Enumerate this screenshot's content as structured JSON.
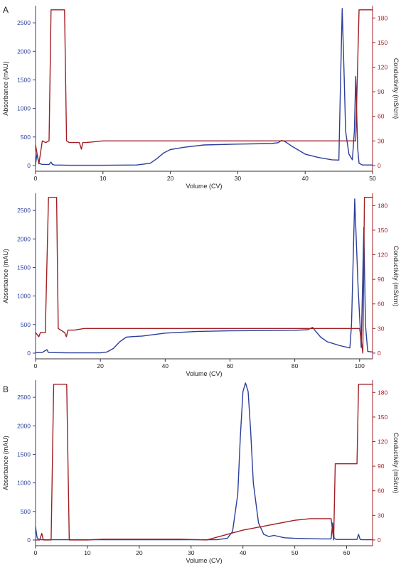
{
  "figure": {
    "colors": {
      "absorbance": "#2a3f9a",
      "conductivity": "#a01f24",
      "axis": "#333333",
      "left_axis": "#2a3f9a",
      "right_axis": "#a01f24"
    }
  },
  "chart_data": [
    {
      "type": "line",
      "panel_label": "A",
      "xlabel": "Volume (CV)",
      "ylabel": "Absorbance (mAU)",
      "y2label": "Conductivity (mS/cm)",
      "xlim": [
        0,
        50
      ],
      "ylim": [
        -100,
        2800
      ],
      "y2lim": [
        -7,
        195
      ],
      "xticks": [
        0,
        10,
        20,
        30,
        40,
        50
      ],
      "yticks": [
        0,
        500,
        1000,
        1500,
        2000,
        2500
      ],
      "y2ticks": [
        0,
        30,
        60,
        90,
        120,
        150,
        180
      ],
      "grid": false,
      "series": [
        {
          "axis": "left",
          "color": "#2a3f9a",
          "x": [
            0,
            0.2,
            0.5,
            1,
            2,
            2.3,
            2.5,
            2.8,
            5,
            10,
            15,
            17,
            18,
            19,
            20,
            22,
            25,
            30,
            35,
            36,
            36.5,
            37,
            38,
            40,
            42,
            44,
            45,
            45.2,
            45.5,
            45.8,
            46,
            46.5,
            47,
            47.3,
            47.5,
            47.8,
            48,
            48.5,
            50
          ],
          "y": [
            20,
            200,
            40,
            20,
            20,
            60,
            20,
            10,
            5,
            5,
            10,
            40,
            120,
            220,
            280,
            320,
            360,
            375,
            385,
            400,
            440,
            420,
            340,
            200,
            140,
            100,
            95,
            1200,
            2750,
            1500,
            600,
            200,
            100,
            600,
            1560,
            300,
            40,
            10,
            10
          ]
        },
        {
          "axis": "right",
          "color": "#a01f24",
          "x": [
            0,
            0.5,
            1,
            1.5,
            2,
            2.3,
            2.6,
            4,
            4.3,
            4.6,
            5,
            6.5,
            6.8,
            7,
            7.5,
            10,
            15,
            20,
            30,
            40,
            45,
            47,
            47.5,
            48,
            48.2,
            48.5,
            49.5,
            50
          ],
          "y": [
            25,
            2,
            30,
            28,
            30,
            190,
            190,
            190,
            190,
            30,
            28,
            28,
            20,
            28,
            28,
            30,
            30,
            30,
            30,
            30,
            30,
            30,
            30,
            190,
            190,
            190,
            190,
            190
          ]
        }
      ]
    },
    {
      "type": "line",
      "xlabel": "Volume (CV)",
      "ylabel": "Absorbance (mAU)",
      "y2label": "Conductivity (mS/cm)",
      "xlim": [
        0,
        104
      ],
      "ylim": [
        -100,
        2800
      ],
      "y2lim": [
        -7,
        195
      ],
      "xticks": [
        0,
        20,
        40,
        60,
        80,
        100
      ],
      "yticks": [
        0,
        500,
        1000,
        1500,
        2000,
        2500
      ],
      "y2ticks": [
        0,
        30,
        60,
        90,
        120,
        150,
        180
      ],
      "grid": false,
      "series": [
        {
          "axis": "left",
          "color": "#2a3f9a",
          "x": [
            0,
            2,
            3.5,
            4,
            10,
            20,
            22,
            24,
            26,
            28,
            30,
            33,
            40,
            50,
            60,
            70,
            80,
            84,
            85.5,
            86.5,
            88,
            90,
            94,
            97,
            97.5,
            98.5,
            99.5,
            100.5,
            101.3,
            101.8,
            102.5,
            104
          ],
          "y": [
            10,
            10,
            60,
            10,
            5,
            5,
            20,
            80,
            200,
            280,
            290,
            300,
            350,
            380,
            390,
            395,
            400,
            410,
            450,
            380,
            280,
            200,
            130,
            90,
            500,
            2700,
            1200,
            100,
            2200,
            500,
            30,
            20
          ]
        },
        {
          "axis": "right",
          "color": "#a01f24",
          "x": [
            0,
            1,
            1.5,
            3,
            4,
            6.5,
            7,
            9,
            9.5,
            10,
            12,
            15,
            20,
            40,
            60,
            80,
            95,
            100,
            101,
            101.5,
            102,
            103,
            104
          ],
          "y": [
            25,
            20,
            25,
            25,
            190,
            190,
            30,
            25,
            20,
            28,
            28,
            30,
            30,
            30,
            30,
            30,
            30,
            30,
            0,
            190,
            190,
            190,
            190
          ]
        }
      ]
    },
    {
      "type": "line",
      "panel_label": "B",
      "xlabel": "Volume (CV)",
      "ylabel": "Absorbance (mAU)",
      "y2label": "Conductivity (mS/cm)",
      "xlim": [
        0,
        65
      ],
      "ylim": [
        -100,
        2800
      ],
      "y2lim": [
        -7,
        195
      ],
      "xticks": [
        0,
        10,
        20,
        30,
        40,
        50,
        60
      ],
      "yticks": [
        0,
        500,
        1000,
        1500,
        2000,
        2500
      ],
      "y2ticks": [
        0,
        30,
        60,
        90,
        120,
        150,
        180
      ],
      "grid": false,
      "series": [
        {
          "axis": "left",
          "color": "#2a3f9a",
          "x": [
            0,
            0.3,
            0.6,
            1,
            5,
            10,
            15,
            20,
            25,
            30,
            35,
            37,
            38,
            39,
            39.5,
            40,
            40.5,
            41,
            41.5,
            42,
            43,
            44,
            45,
            46,
            48,
            50,
            55,
            57,
            57.3,
            57.6,
            58,
            62,
            62.3,
            62.6,
            63,
            65
          ],
          "y": [
            230,
            40,
            10,
            5,
            5,
            5,
            5,
            5,
            5,
            5,
            5,
            30,
            150,
            800,
            1800,
            2600,
            2750,
            2600,
            1900,
            1000,
            300,
            100,
            60,
            80,
            40,
            30,
            20,
            20,
            300,
            30,
            10,
            10,
            100,
            10,
            5,
            5
          ]
        },
        {
          "axis": "right",
          "color": "#a01f24",
          "x": [
            0,
            0.8,
            1.2,
            1.5,
            3,
            3.5,
            6,
            6.5,
            10,
            13,
            28,
            33,
            40,
            50,
            53,
            57,
            57.5,
            57.8,
            58,
            62,
            62.3,
            62.6,
            65
          ],
          "y": [
            0,
            0,
            8,
            0,
            0,
            190,
            190,
            0,
            0,
            1,
            1,
            0,
            12,
            24,
            26,
            26,
            0,
            93,
            93,
            93,
            190,
            190,
            190
          ]
        }
      ]
    }
  ]
}
